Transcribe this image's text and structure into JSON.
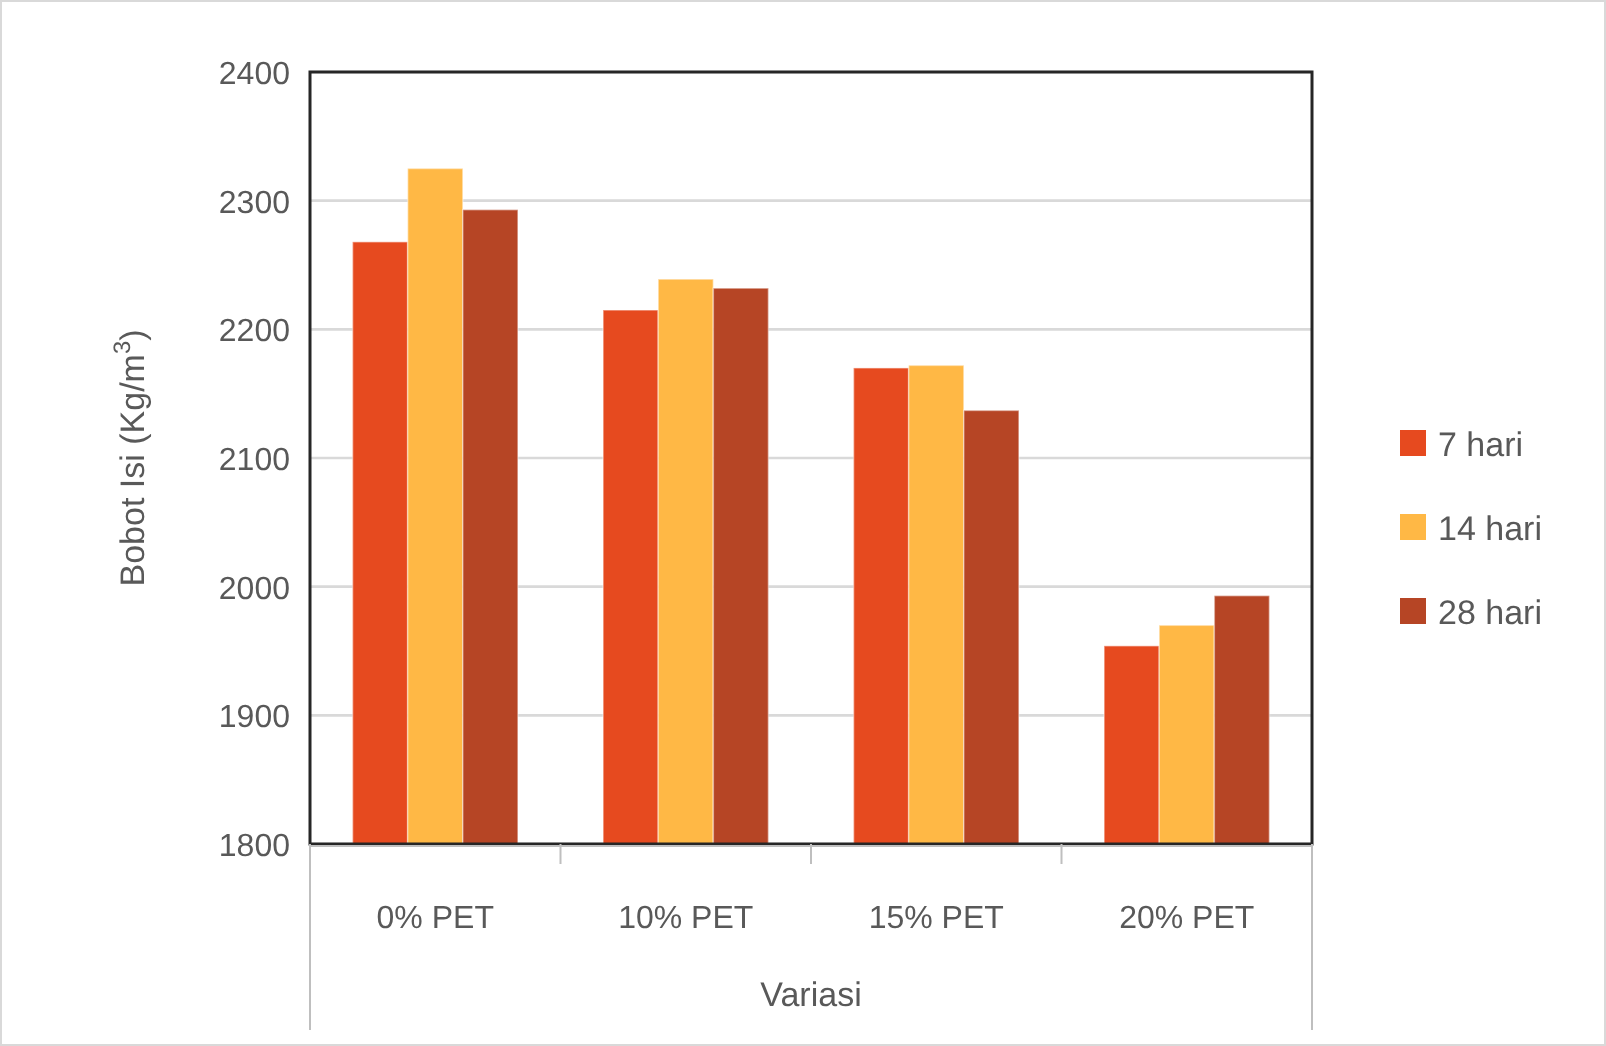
{
  "chart_data": {
    "type": "bar",
    "xlabel": "Variasi",
    "ylabel": "Bobot Isi (Kg/m$^{3}$)",
    "categories": [
      "0% PET",
      "10% PET",
      "15% PET",
      "20% PET"
    ],
    "series": [
      {
        "name": "7 hari",
        "color": "#e64a1f",
        "values": [
          2268,
          2215,
          2170,
          1954
        ]
      },
      {
        "name": "14 hari",
        "color": "#ffb845",
        "values": [
          2325,
          2239,
          2172,
          1970
        ]
      },
      {
        "name": "28 hari",
        "color": "#b64525",
        "values": [
          2293,
          2232,
          2137,
          1993
        ]
      }
    ],
    "ylim": [
      1800,
      2400
    ],
    "yticks": [
      1800,
      1900,
      2000,
      2100,
      2200,
      2300,
      2400
    ],
    "grid": "y",
    "legend": "right"
  }
}
